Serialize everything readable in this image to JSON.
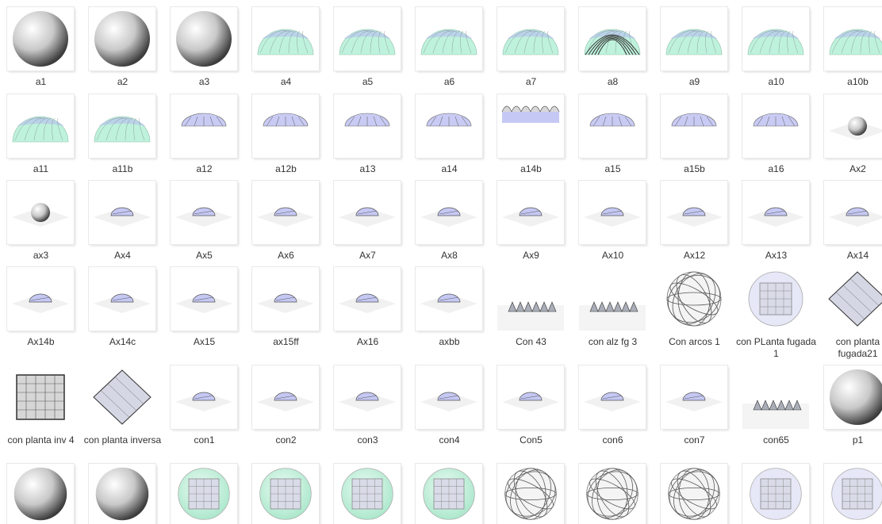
{
  "window": {
    "view": "Large icons"
  },
  "colors": {
    "label": "#333333",
    "background": "#ffffff",
    "mint": "#bff2dc",
    "lavender": "#9b9ff5"
  },
  "items": [
    {
      "name": "a1",
      "icon": "sphere-shaded-thumbnail"
    },
    {
      "name": "a2",
      "icon": "sphere-shaded-thumbnail"
    },
    {
      "name": "a3",
      "icon": "sphere-shaded-thumbnail"
    },
    {
      "name": "a4",
      "icon": "dome-mint-thumbnail"
    },
    {
      "name": "a5",
      "icon": "dome-mint-thumbnail"
    },
    {
      "name": "a6",
      "icon": "dome-mint-thumbnail"
    },
    {
      "name": "a7",
      "icon": "dome-mint-thumbnail"
    },
    {
      "name": "a8",
      "icon": "dome-arcs-thumbnail"
    },
    {
      "name": "a9",
      "icon": "dome-mint-thumbnail"
    },
    {
      "name": "a10",
      "icon": "dome-mint-thumbnail"
    },
    {
      "name": "a10b",
      "icon": "dome-mint-thumbnail"
    },
    {
      "name": "a11",
      "icon": "dome-mint-thumbnail"
    },
    {
      "name": "a11b",
      "icon": "dome-mint-thumbnail"
    },
    {
      "name": "a12",
      "icon": "dome-low-thumbnail"
    },
    {
      "name": "a12b",
      "icon": "dome-low-thumbnail"
    },
    {
      "name": "a13",
      "icon": "dome-low-thumbnail"
    },
    {
      "name": "a14",
      "icon": "dome-low-thumbnail"
    },
    {
      "name": "a14b",
      "icon": "dome-faceted-thumbnail"
    },
    {
      "name": "a15",
      "icon": "dome-low-thumbnail"
    },
    {
      "name": "a15b",
      "icon": "dome-low-thumbnail"
    },
    {
      "name": "a16",
      "icon": "dome-low-thumbnail"
    },
    {
      "name": "Ax2",
      "icon": "axo-sphere-thumbnail"
    },
    {
      "name": "ax3",
      "icon": "axo-sphere-thumbnail"
    },
    {
      "name": "Ax4",
      "icon": "axo-dome-thumbnail"
    },
    {
      "name": "Ax5",
      "icon": "axo-dome-thumbnail"
    },
    {
      "name": "Ax6",
      "icon": "axo-dome-thumbnail"
    },
    {
      "name": "Ax7",
      "icon": "axo-dome-thumbnail"
    },
    {
      "name": "Ax8",
      "icon": "axo-dome-thumbnail"
    },
    {
      "name": "Ax9",
      "icon": "axo-dome-thumbnail"
    },
    {
      "name": "Ax10",
      "icon": "axo-dome-thumbnail"
    },
    {
      "name": "Ax12",
      "icon": "axo-dome-thumbnail"
    },
    {
      "name": "Ax13",
      "icon": "axo-dome-thumbnail"
    },
    {
      "name": "Ax14",
      "icon": "axo-dome-thumbnail"
    },
    {
      "name": "Ax14b",
      "icon": "axo-dome-thumbnail"
    },
    {
      "name": "Ax14c",
      "icon": "axo-dome-thumbnail"
    },
    {
      "name": "Ax15",
      "icon": "axo-dome-thumbnail"
    },
    {
      "name": "ax15ff",
      "icon": "axo-dome-thumbnail"
    },
    {
      "name": "Ax16",
      "icon": "axo-dome-thumbnail"
    },
    {
      "name": "axbb",
      "icon": "axo-dome-thumbnail"
    },
    {
      "name": "Con 43",
      "icon": "faceted-dome-thumbnail"
    },
    {
      "name": "con alz fg 3",
      "icon": "faceted-dome-thumbnail"
    },
    {
      "name": "Con arcos 1",
      "icon": "wire-sphere-thumbnail"
    },
    {
      "name": "con PLanta fugada 1",
      "icon": "plan-circle-thumbnail"
    },
    {
      "name": "con planta fugada21",
      "icon": "plan-diamond-thumbnail"
    },
    {
      "name": "con planta inv 4",
      "icon": "plan-square-thumbnail"
    },
    {
      "name": "con planta inversa",
      "icon": "plan-diamond-thumbnail"
    },
    {
      "name": "con1",
      "icon": "axo-dome-thumbnail"
    },
    {
      "name": "con2",
      "icon": "axo-dome-thumbnail"
    },
    {
      "name": "con3",
      "icon": "axo-dome-thumbnail"
    },
    {
      "name": "con4",
      "icon": "axo-dome-thumbnail"
    },
    {
      "name": "Con5",
      "icon": "axo-dome-thumbnail"
    },
    {
      "name": "con6",
      "icon": "axo-dome-thumbnail"
    },
    {
      "name": "con7",
      "icon": "axo-dome-thumbnail"
    },
    {
      "name": "con65",
      "icon": "faceted-dome-thumbnail"
    },
    {
      "name": "p1",
      "icon": "sphere-shaded-thumbnail"
    },
    {
      "name": "",
      "icon": "sphere-shaded-thumbnail"
    },
    {
      "name": "",
      "icon": "sphere-shaded-thumbnail"
    },
    {
      "name": "",
      "icon": "plan-mint-circle-thumbnail"
    },
    {
      "name": "",
      "icon": "plan-mint-circle-thumbnail"
    },
    {
      "name": "",
      "icon": "plan-mint-circle-thumbnail"
    },
    {
      "name": "",
      "icon": "plan-mint-circle-thumbnail"
    },
    {
      "name": "",
      "icon": "wire-sphere-thumbnail"
    },
    {
      "name": "",
      "icon": "wire-sphere-thumbnail"
    },
    {
      "name": "",
      "icon": "wire-sphere-thumbnail"
    },
    {
      "name": "",
      "icon": "plan-circle-thumbnail"
    },
    {
      "name": "",
      "icon": "plan-circle-thumbnail"
    }
  ]
}
